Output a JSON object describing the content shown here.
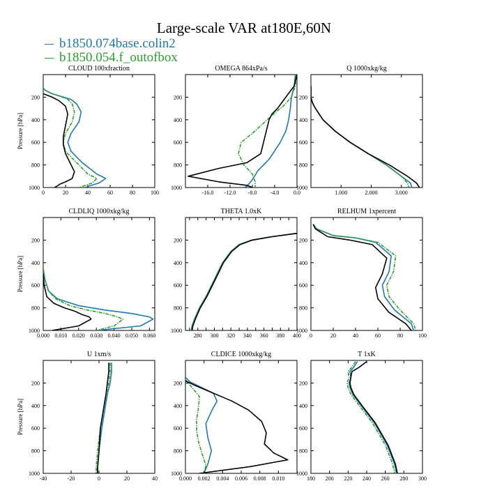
{
  "title": "Large-scale VAR at180E,60N",
  "legend": [
    {
      "label": "b1850.074base.colin2",
      "color": "#1f77b4"
    },
    {
      "label": "b1850.054.f_outofbox",
      "color": "#2ca02c"
    }
  ],
  "series_colors": [
    "#1f77b4",
    "#2ca02c",
    "#000000"
  ],
  "chart_data": [
    {
      "type": "line",
      "title": "CLOUD 100xfraction",
      "ylabel": "Pressure [hPa]",
      "xlim": [
        0,
        100
      ],
      "xticks": [
        0,
        20,
        40,
        60,
        80,
        100
      ],
      "xtick_labels": [
        "0",
        "20",
        "40",
        "60",
        "80",
        "100"
      ],
      "ylim": [
        1000,
        0
      ],
      "yticks": [
        200,
        400,
        600,
        800,
        1000
      ],
      "series": [
        {
          "x": [
            0,
            2,
            8,
            15,
            25,
            30,
            34,
            32,
            25,
            22,
            25,
            35,
            48,
            56,
            50,
            40,
            38
          ],
          "y": [
            120,
            140,
            170,
            190,
            220,
            260,
            330,
            420,
            520,
            600,
            680,
            780,
            880,
            920,
            960,
            990,
            1000
          ]
        },
        {
          "x": [
            0,
            2,
            8,
            15,
            22,
            26,
            28,
            26,
            20,
            18,
            20,
            30,
            40,
            48,
            44,
            35,
            33
          ],
          "y": [
            120,
            140,
            170,
            190,
            220,
            260,
            330,
            420,
            520,
            600,
            680,
            780,
            880,
            920,
            960,
            990,
            1000
          ]
        },
        {
          "x": [
            0,
            3,
            8,
            14,
            20,
            22,
            20,
            18,
            18,
            20,
            24,
            28,
            26,
            20,
            15,
            12,
            10
          ],
          "y": [
            170,
            180,
            200,
            230,
            280,
            350,
            450,
            550,
            620,
            700,
            780,
            860,
            920,
            950,
            970,
            990,
            1000
          ]
        }
      ]
    },
    {
      "type": "line",
      "title": "OMEGA 864xPa/s",
      "ylabel": "",
      "xlim": [
        -20,
        0
      ],
      "xticks": [
        -16,
        -12,
        -8,
        -4,
        0
      ],
      "xtick_labels": [
        "-16.0",
        "-12.0",
        "-8.0",
        "-4.0",
        "0.0"
      ],
      "ylim": [
        1000,
        0
      ],
      "yticks": [
        200,
        400,
        600,
        800,
        1000
      ],
      "series": [
        {
          "x": [
            -0.3,
            -0.5,
            -1.0,
            -1.2,
            -1.5,
            -2.0,
            -3.0,
            -5.0,
            -7.0,
            -8.0,
            -9.0,
            -9.5
          ],
          "y": [
            0,
            100,
            200,
            300,
            400,
            500,
            600,
            750,
            850,
            930,
            990,
            1000
          ]
        },
        {
          "x": [
            -0.1,
            -0.3,
            -1.0,
            -2.5,
            -4.0,
            -6.0,
            -8.0,
            -10.0,
            -10.5,
            -9.5,
            -8.0,
            -7.5,
            -7.5
          ],
          "y": [
            0,
            100,
            200,
            280,
            340,
            430,
            520,
            600,
            700,
            800,
            880,
            950,
            1000
          ]
        },
        {
          "x": [
            0.0,
            -0.5,
            -2.0,
            -3.5,
            -4.5,
            -5.0,
            -5.5,
            -6.0,
            -6.5,
            -9.0,
            -14.0,
            -19.5,
            -14.0,
            -9.0,
            -8.0
          ],
          "y": [
            0,
            100,
            200,
            300,
            350,
            400,
            500,
            600,
            700,
            780,
            830,
            900,
            950,
            980,
            1000
          ]
        }
      ]
    },
    {
      "type": "line",
      "title": "Q 1000xkg/kg",
      "ylabel": "",
      "xlim": [
        0,
        3.7
      ],
      "xticks": [
        1,
        2,
        3
      ],
      "xtick_labels": [
        "1.000",
        "2.000",
        "3.000"
      ],
      "ylim": [
        1000,
        0
      ],
      "yticks": [
        200,
        400,
        600,
        800,
        1000
      ],
      "series": [
        {
          "x": [
            0,
            0,
            0.05,
            0.15,
            0.4,
            0.8,
            1.3,
            1.9,
            2.5,
            3.0,
            3.3,
            3.35
          ],
          "y": [
            100,
            200,
            250,
            300,
            400,
            500,
            600,
            700,
            800,
            900,
            960,
            1000
          ]
        },
        {
          "x": [
            0,
            0,
            0.05,
            0.15,
            0.4,
            0.8,
            1.3,
            1.9,
            2.5,
            3.0,
            3.2,
            3.25
          ],
          "y": [
            100,
            200,
            250,
            300,
            400,
            500,
            600,
            700,
            800,
            900,
            960,
            1000
          ]
        },
        {
          "x": [
            0,
            0,
            0.05,
            0.15,
            0.4,
            0.8,
            1.3,
            1.9,
            2.6,
            3.2,
            3.5,
            3.6
          ],
          "y": [
            100,
            200,
            250,
            300,
            400,
            500,
            600,
            700,
            800,
            900,
            960,
            1000
          ]
        }
      ]
    },
    {
      "type": "line",
      "title": "CLDLIQ 1000xkg/kg",
      "ylabel": "Pressure [hPa]",
      "xlim": [
        0,
        0.063
      ],
      "xticks": [
        0,
        0.01,
        0.02,
        0.03,
        0.04,
        0.05,
        0.06
      ],
      "xtick_labels": [
        "0.000",
        "0.010",
        "0.020",
        "0.030",
        "0.040",
        "0.050",
        "0.060"
      ],
      "ylim": [
        1000,
        0
      ],
      "yticks": [
        200,
        400,
        600,
        800,
        1000
      ],
      "series": [
        {
          "x": [
            0,
            0.001,
            0.003,
            0.008,
            0.02,
            0.035,
            0.05,
            0.06,
            0.062,
            0.055,
            0.03
          ],
          "y": [
            450,
            550,
            650,
            720,
            780,
            820,
            850,
            880,
            900,
            960,
            1000
          ]
        },
        {
          "x": [
            0,
            0.001,
            0.003,
            0.007,
            0.015,
            0.025,
            0.035,
            0.042,
            0.045,
            0.04,
            0.03
          ],
          "y": [
            450,
            550,
            650,
            720,
            780,
            820,
            850,
            880,
            900,
            960,
            1000
          ]
        },
        {
          "x": [
            0,
            0.0005,
            0.002,
            0.006,
            0.012,
            0.018,
            0.022,
            0.026,
            0.027,
            0.02,
            0.005
          ],
          "y": [
            500,
            600,
            700,
            760,
            800,
            830,
            860,
            880,
            900,
            960,
            1000
          ]
        }
      ]
    },
    {
      "type": "line",
      "title": "THETA 1.0xK",
      "ylabel": "",
      "xlim": [
        265,
        400
      ],
      "xticks": [
        270,
        280,
        290,
        300,
        310,
        320,
        330,
        340,
        350,
        360,
        370,
        380,
        390,
        400
      ],
      "xtick_labels": [
        "",
        "280",
        "",
        "300",
        "",
        "320",
        "",
        "340",
        "",
        "360",
        "",
        "380",
        "",
        "400"
      ],
      "ylim": [
        1000,
        0
      ],
      "yticks": [
        200,
        400,
        600,
        800,
        1000
      ],
      "series": [
        {
          "x": [
            400,
            370,
            345,
            330,
            320,
            310,
            300,
            290,
            282,
            276,
            273,
            272
          ],
          "y": [
            140,
            170,
            200,
            240,
            300,
            400,
            550,
            700,
            800,
            900,
            960,
            1000
          ]
        },
        {
          "x": [
            400,
            370,
            345,
            330,
            320,
            310,
            300,
            290,
            282,
            276,
            273,
            272
          ],
          "y": [
            140,
            170,
            200,
            240,
            300,
            400,
            550,
            700,
            800,
            900,
            960,
            1000
          ]
        },
        {
          "x": [
            400,
            370,
            346,
            331,
            321,
            311,
            301,
            291,
            283,
            277,
            274,
            273
          ],
          "y": [
            140,
            170,
            200,
            240,
            300,
            400,
            550,
            700,
            800,
            900,
            960,
            1000
          ]
        }
      ]
    },
    {
      "type": "line",
      "title": "RELHUM 1xpercent",
      "ylabel": "",
      "xlim": [
        0,
        100
      ],
      "xticks": [
        0,
        20,
        40,
        60,
        80,
        100
      ],
      "xtick_labels": [
        "0",
        "20",
        "40",
        "60",
        "80",
        "100"
      ],
      "ylim": [
        1000,
        0
      ],
      "yticks": [
        200,
        400,
        600,
        800,
        1000
      ],
      "series": [
        {
          "x": [
            2,
            5,
            20,
            40,
            58,
            72,
            70,
            64,
            66,
            75,
            90,
            92
          ],
          "y": [
            60,
            100,
            160,
            180,
            220,
            340,
            480,
            600,
            700,
            820,
            940,
            1000
          ]
        },
        {
          "x": [
            2,
            5,
            20,
            40,
            60,
            76,
            74,
            68,
            70,
            80,
            92,
            94
          ],
          "y": [
            60,
            100,
            160,
            180,
            220,
            340,
            480,
            600,
            700,
            820,
            940,
            1000
          ]
        },
        {
          "x": [
            2,
            4,
            15,
            35,
            55,
            68,
            64,
            58,
            60,
            70,
            85,
            90
          ],
          "y": [
            60,
            100,
            170,
            200,
            240,
            360,
            500,
            620,
            720,
            840,
            940,
            1000
          ]
        }
      ]
    },
    {
      "type": "line",
      "title": "U 1xm/s",
      "ylabel": "Pressure [hPa]",
      "xlim": [
        -40,
        40
      ],
      "xticks": [
        -40,
        -20,
        0,
        20,
        40
      ],
      "xtick_labels": [
        "-40",
        "-20",
        "0",
        "20",
        "40"
      ],
      "ylim": [
        1000,
        0
      ],
      "yticks": [
        200,
        400,
        600,
        800,
        1000
      ],
      "series": [
        {
          "x": [
            9,
            9,
            8,
            6,
            4,
            2,
            0,
            -1,
            -1
          ],
          "y": [
            20,
            100,
            200,
            300,
            450,
            600,
            800,
            950,
            1000
          ]
        },
        {
          "x": [
            8,
            8,
            7,
            5,
            3,
            1,
            -1,
            -2,
            -2
          ],
          "y": [
            20,
            100,
            200,
            300,
            450,
            600,
            800,
            950,
            1000
          ]
        },
        {
          "x": [
            7,
            7,
            6,
            5,
            3,
            1,
            0,
            -1,
            -1
          ],
          "y": [
            20,
            100,
            200,
            300,
            450,
            600,
            800,
            950,
            1000
          ]
        }
      ]
    },
    {
      "type": "line",
      "title": "CLDICE 1000xkg/kg",
      "ylabel": "",
      "xlim": [
        0,
        0.012
      ],
      "xticks": [
        0,
        0.002,
        0.004,
        0.006,
        0.008,
        0.01
      ],
      "xtick_labels": [
        "0.000",
        "0.002",
        "0.004",
        "0.006",
        "0.008",
        "0.010"
      ],
      "ylim": [
        1000,
        0
      ],
      "yticks": [
        200,
        400,
        600,
        800,
        1000
      ],
      "series": [
        {
          "x": [
            0,
            0.0005,
            0.0015,
            0.003,
            0.0034,
            0.0028,
            0.0022,
            0.0024,
            0.0028,
            0.0024,
            0.002
          ],
          "y": [
            150,
            190,
            230,
            290,
            360,
            450,
            560,
            680,
            800,
            920,
            1000
          ]
        },
        {
          "x": [
            0,
            0.0003,
            0.0008,
            0.0015,
            0.0014,
            0.0012,
            0.0012,
            0.0014,
            0.0018,
            0.0022,
            0.002
          ],
          "y": [
            170,
            200,
            250,
            320,
            420,
            520,
            620,
            720,
            830,
            930,
            1000
          ]
        },
        {
          "x": [
            0,
            0.001,
            0.003,
            0.005,
            0.0068,
            0.0082,
            0.0087,
            0.0085,
            0.0095,
            0.011,
            0.007,
            0.0015
          ],
          "y": [
            180,
            220,
            290,
            360,
            440,
            540,
            640,
            740,
            820,
            880,
            940,
            1000
          ]
        }
      ]
    },
    {
      "type": "line",
      "title": "T 1xK",
      "ylabel": "",
      "xlim": [
        180,
        300
      ],
      "xticks": [
        180,
        200,
        220,
        240,
        260,
        280,
        300
      ],
      "xtick_labels": [
        "180",
        "200",
        "220",
        "240",
        "260",
        "280",
        "300"
      ],
      "ylim": [
        1000,
        0
      ],
      "yticks": [
        200,
        400,
        600,
        800,
        1000
      ],
      "series": [
        {
          "x": [
            230,
            226,
            222,
            223,
            221,
            222,
            225,
            234,
            248,
            262,
            270,
            272
          ],
          "y": [
            10,
            60,
            100,
            150,
            200,
            240,
            300,
            400,
            550,
            750,
            920,
            1000
          ]
        },
        {
          "x": [
            228,
            224,
            220,
            221,
            219,
            220,
            223,
            232,
            246,
            260,
            268,
            270
          ],
          "y": [
            10,
            60,
            100,
            150,
            200,
            240,
            300,
            400,
            550,
            750,
            920,
            1000
          ]
        },
        {
          "x": [
            240,
            232,
            224,
            223,
            222,
            223,
            226,
            235,
            249,
            263,
            271,
            273
          ],
          "y": [
            10,
            60,
            100,
            150,
            200,
            240,
            300,
            400,
            550,
            750,
            920,
            1000
          ]
        }
      ]
    }
  ]
}
